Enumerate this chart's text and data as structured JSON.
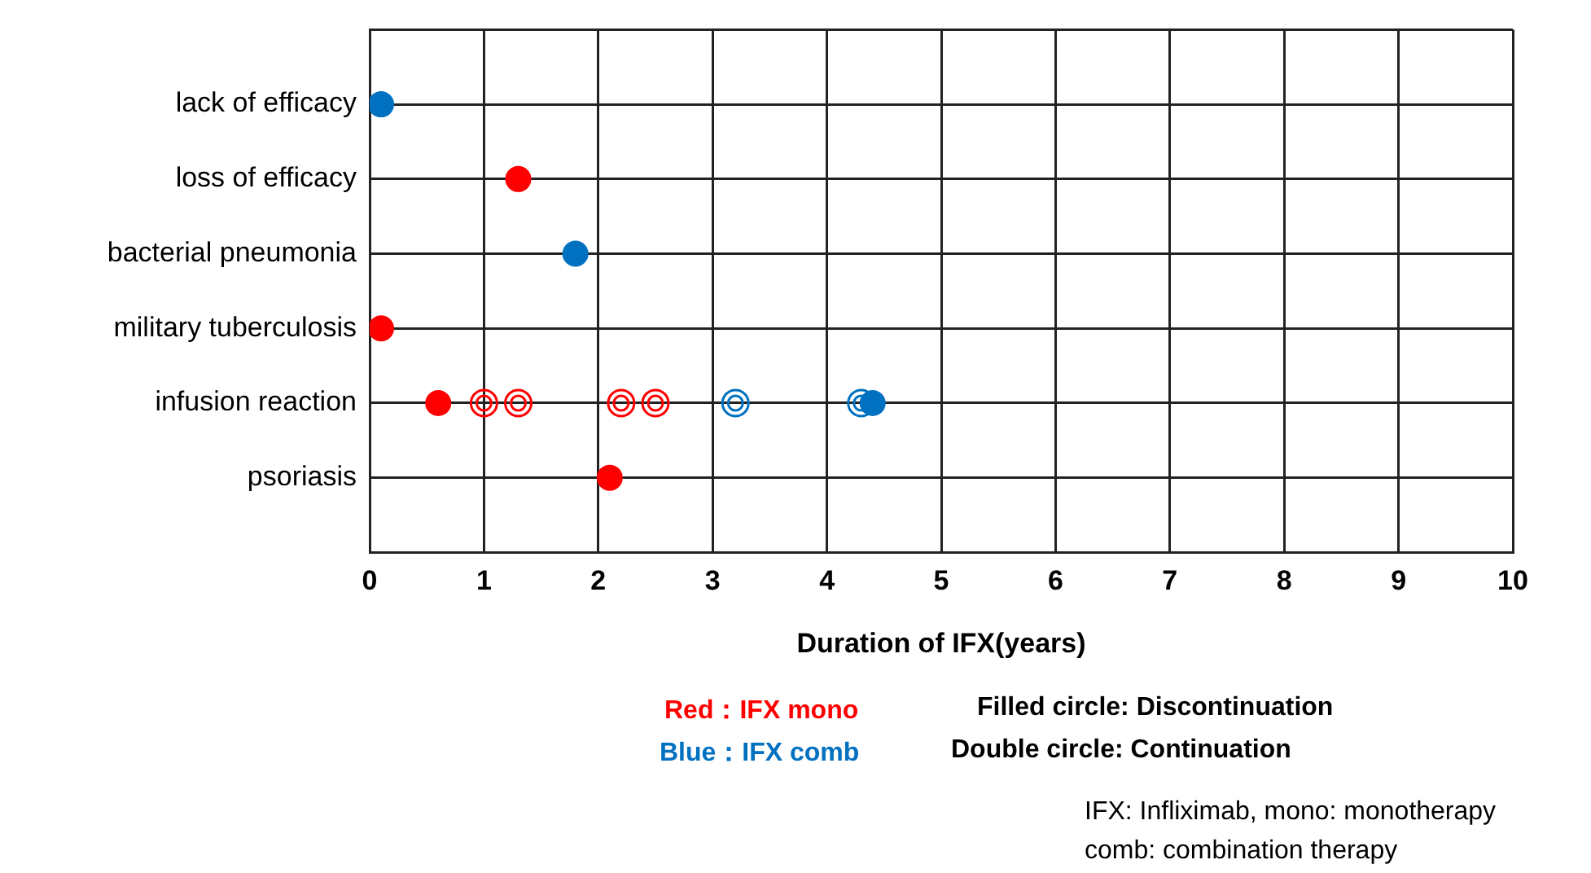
{
  "chart_data": {
    "type": "scatter",
    "orientation": "horizontal",
    "xlabel": "Duration of IFX(years)",
    "xlim": [
      0,
      10
    ],
    "xticks": [
      0,
      1,
      2,
      3,
      4,
      5,
      6,
      7,
      8,
      9,
      10
    ],
    "grid": true,
    "legend": false,
    "categories": [
      "lack of efficacy",
      "loss of efficacy",
      "bacterial pneumonia",
      "military tuberculosis",
      "infusion reaction",
      "psoriasis"
    ],
    "series": [
      {
        "color": "#ff0000",
        "marker": "circle",
        "values": [
          null,
          1.3,
          null,
          0.1,
          0.6,
          2.1
        ]
      },
      {
        "color": "#ff0000",
        "marker": "double circle",
        "values": [
          null,
          null,
          null,
          null,
          1.0,
          null
        ]
      },
      {
        "color": "#ff0000",
        "marker": "double circle",
        "values": [
          null,
          null,
          null,
          null,
          1.3,
          null
        ]
      },
      {
        "color": "#ff0000",
        "marker": "double circle",
        "values": [
          null,
          null,
          null,
          null,
          2.2,
          null
        ]
      },
      {
        "color": "#ff0000",
        "marker": "double circle",
        "values": [
          null,
          null,
          null,
          null,
          2.5,
          null
        ]
      },
      {
        "color": "#0070c0",
        "marker": "circle",
        "values": [
          0.1,
          null,
          1.8,
          null,
          4.4,
          null
        ]
      },
      {
        "color": "#0070c0",
        "marker": "double circle",
        "values": [
          null,
          null,
          null,
          null,
          3.2,
          null
        ]
      },
      {
        "color": "#0070c0",
        "marker": "double circle",
        "values": [
          null,
          null,
          null,
          null,
          4.3,
          null
        ]
      }
    ],
    "annotations": [
      "Red：IFX mono",
      "Blue：IFX comb",
      "Filled circle: Discontinuation",
      "Double circle: Continuation",
      "IFX: Infliximab, mono: monotherapy",
      "comb: combination therapy"
    ]
  }
}
